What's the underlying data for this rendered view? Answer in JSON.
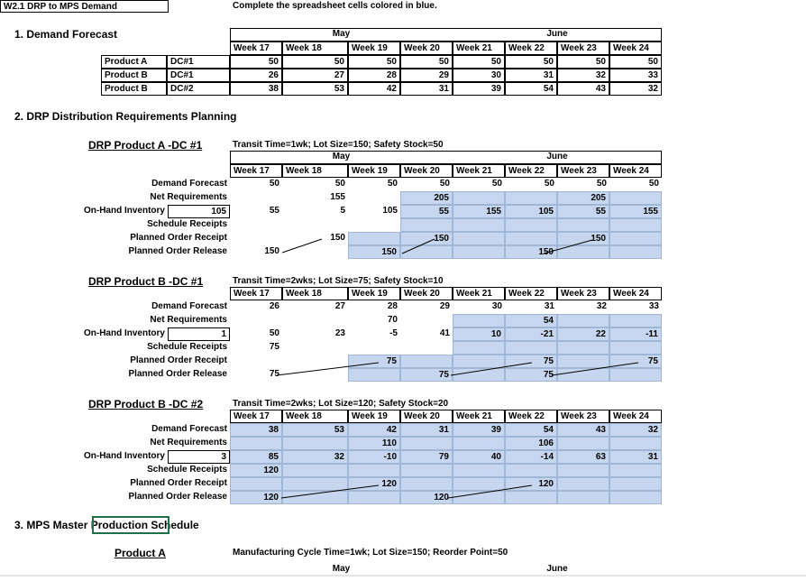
{
  "header": {
    "sheet_title": "W2.1 DRP to MPS Demand",
    "instruction": "Complete the spreadsheet cells colored in blue."
  },
  "demand_forecast": {
    "title": "1. Demand Forecast",
    "months": [
      "May",
      "June"
    ],
    "weeks": [
      "Week 17",
      "Week 18",
      "Week 19",
      "Week 20",
      "Week 21",
      "Week 22",
      "Week 23",
      "Week 24"
    ],
    "rows": [
      {
        "product": "Product A",
        "dc": "DC#1",
        "values": [
          50,
          50,
          50,
          50,
          50,
          50,
          50,
          50
        ]
      },
      {
        "product": "Product B",
        "dc": "DC#1",
        "values": [
          26,
          27,
          28,
          29,
          30,
          31,
          32,
          33
        ]
      },
      {
        "product": "Product B",
        "dc": "DC#2",
        "values": [
          38,
          53,
          42,
          31,
          39,
          54,
          43,
          32
        ]
      }
    ]
  },
  "drp": {
    "title": "2. DRP Distribution Requirements Planning",
    "blocks": [
      {
        "title": "DRP Product A -DC #1",
        "parameters": "Transit Time=1wk; Lot Size=150; Safety Stock=50",
        "months": [
          "May",
          "June"
        ],
        "weeks": [
          "Week 17",
          "Week 18",
          "Week 19",
          "Week 20",
          "Week 21",
          "Week 22",
          "Week 23",
          "Week 24"
        ],
        "row_labels": [
          "Demand Forecast",
          "Net Requirements",
          "On-Hand Inventory",
          "Schedule Receipts",
          "Planned Order Receipt",
          "Planned Order Release"
        ],
        "initial_inventory": 105,
        "rows": [
          [
            50,
            50,
            50,
            50,
            50,
            50,
            50,
            50
          ],
          [
            null,
            155,
            null,
            205,
            null,
            null,
            205,
            null
          ],
          [
            55,
            5,
            105,
            55,
            155,
            105,
            55,
            155
          ],
          [
            null,
            null,
            null,
            null,
            null,
            null,
            null,
            null
          ],
          [
            null,
            150,
            null,
            150,
            null,
            null,
            150,
            null
          ],
          [
            150,
            null,
            150,
            null,
            null,
            150,
            null,
            null
          ]
        ]
      },
      {
        "title": "DRP Product B -DC #1",
        "parameters": "Transit Time=2wks; Lot Size=75; Safety Stock=10",
        "weeks": [
          "Week 17",
          "Week 18",
          "Week 19",
          "Week 20",
          "Week 21",
          "Week 22",
          "Week 23",
          "Week 24"
        ],
        "row_labels": [
          "Demand Forecast",
          "Net Requirements",
          "On-Hand Inventory",
          "Schedule Receipts",
          "Planned Order Receipt",
          "Planned Order Release"
        ],
        "initial_inventory": 1,
        "rows": [
          [
            26,
            27,
            28,
            29,
            30,
            31,
            32,
            33
          ],
          [
            null,
            null,
            70,
            null,
            null,
            54,
            null,
            null
          ],
          [
            50,
            23,
            -5,
            41,
            10,
            -21,
            22,
            -11
          ],
          [
            75,
            null,
            null,
            null,
            null,
            null,
            null,
            null
          ],
          [
            null,
            null,
            75,
            null,
            null,
            75,
            null,
            75
          ],
          [
            75,
            null,
            null,
            75,
            null,
            75,
            null,
            null
          ]
        ]
      },
      {
        "title": "DRP Product B -DC #2",
        "parameters": "Transit Time=2wks; Lot Size=120; Safety Stock=20",
        "weeks": [
          "Week 17",
          "Week 18",
          "Week 19",
          "Week 20",
          "Week 21",
          "Week 22",
          "Week 23",
          "Week 24"
        ],
        "row_labels": [
          "Demand Forecast",
          "Net Requirements",
          "On-Hand Inventory",
          "Schedule Receipts",
          "Planned Order Receipt",
          "Planned Order Release"
        ],
        "initial_inventory": 3,
        "rows": [
          [
            38,
            53,
            42,
            31,
            39,
            54,
            43,
            32
          ],
          [
            null,
            null,
            110,
            null,
            null,
            106,
            null,
            null
          ],
          [
            85,
            32,
            -10,
            79,
            40,
            -14,
            63,
            31
          ],
          [
            120,
            null,
            null,
            null,
            null,
            null,
            null,
            null
          ],
          [
            null,
            null,
            120,
            null,
            null,
            120,
            null,
            null
          ],
          [
            120,
            null,
            null,
            120,
            null,
            null,
            null,
            null
          ]
        ]
      }
    ]
  },
  "mps": {
    "title": "3. MPS Master Production Schedule",
    "product": "Product A",
    "parameters": "Manufacturing Cycle Time=1wk; Lot Size=150; Reorder Point=50",
    "months": [
      "May",
      "June"
    ]
  }
}
